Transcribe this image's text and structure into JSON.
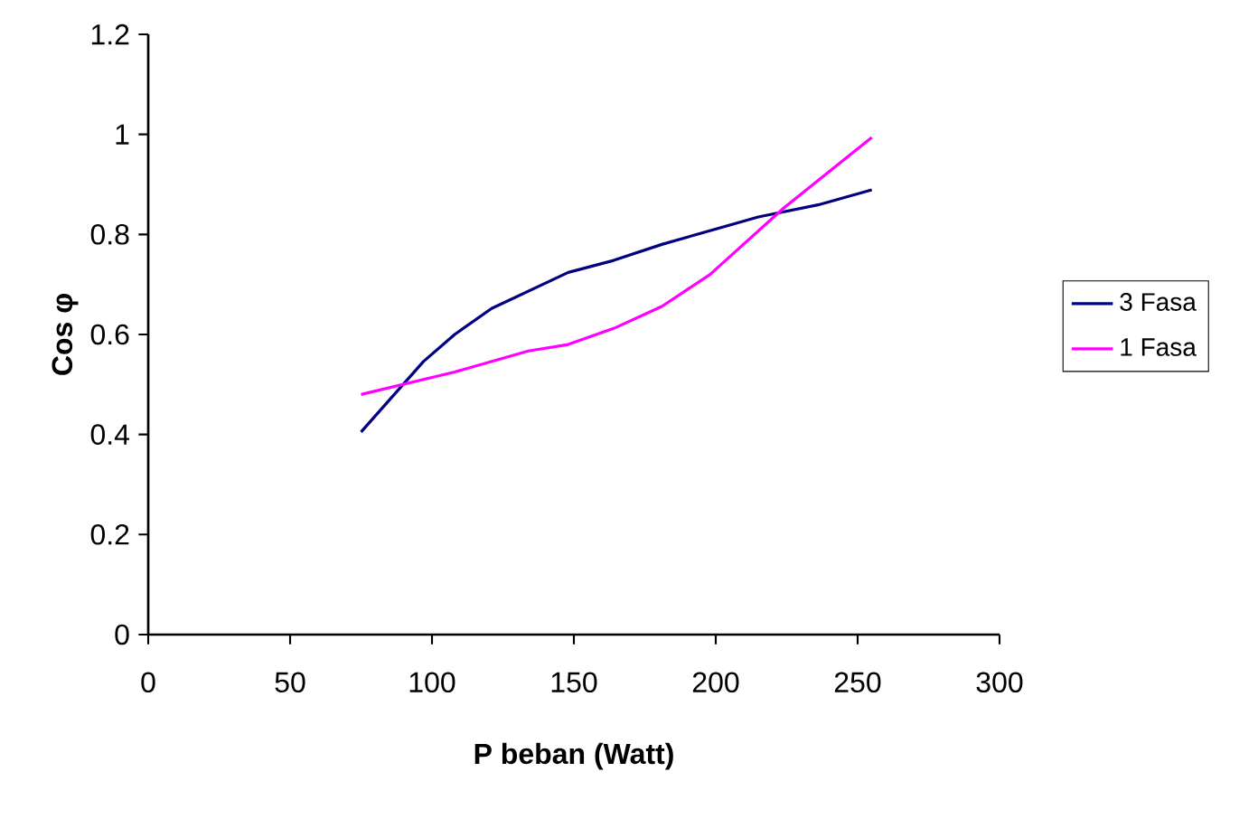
{
  "chart_data": {
    "type": "line",
    "xlabel": "P beban (Watt)",
    "ylabel": "Cos φ",
    "xlim": [
      0,
      300
    ],
    "xticks": [
      0,
      50,
      100,
      150,
      200,
      250,
      300
    ],
    "ylim": [
      0,
      1.2
    ],
    "yticks": [
      0,
      0.2,
      0.4,
      0.6,
      0.8,
      1,
      1.2
    ],
    "legend": "right",
    "marker": "none",
    "line_style": "solid",
    "series": [
      {
        "name": "3 Fasa",
        "color": "#000080",
        "x": [
          75,
          97,
          108,
          121,
          148,
          164,
          181,
          215,
          236,
          255
        ],
        "values": [
          0.405,
          0.546,
          0.6,
          0.652,
          0.724,
          0.748,
          0.78,
          0.835,
          0.859,
          0.889
        ]
      },
      {
        "name": "1 Fasa",
        "color": "#ff00ff",
        "x": [
          75,
          108,
          134,
          148,
          164,
          181,
          198,
          224,
          255
        ],
        "values": [
          0.48,
          0.525,
          0.567,
          0.58,
          0.612,
          0.656,
          0.72,
          0.853,
          0.994
        ]
      }
    ]
  }
}
